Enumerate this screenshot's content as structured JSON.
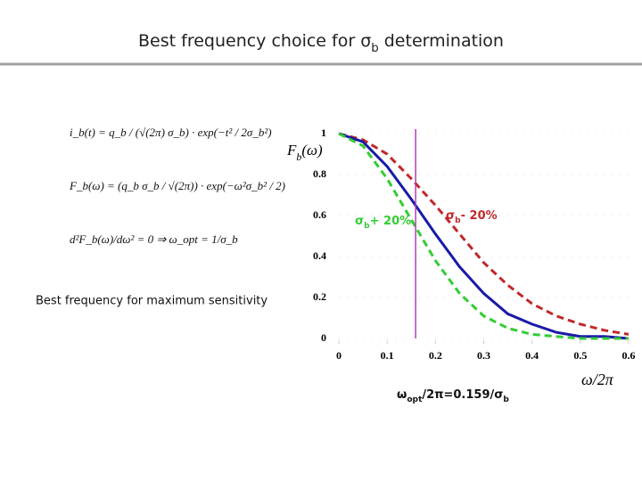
{
  "slide": {
    "title": [
      {
        "text": "Best frequency choice for σ"
      },
      {
        "text": "b",
        "sub": true
      },
      {
        "text": " determination"
      }
    ],
    "formulas": [
      "i_b(t) = q_b / (√(2π) σ_b) · exp(−t² / 2σ_b²)",
      "F_b(ω) = (q_b σ_b / √(2π)) · exp(−ω²σ_b² / 2)",
      "d²F_b(ω)/dω² = 0  ⇒  ω_opt = 1/σ_b"
    ],
    "caption": "Best frequency for maximum sensitivity"
  },
  "chart_data": {
    "type": "line",
    "x": [
      0,
      0.05,
      0.1,
      0.15,
      0.2,
      0.25,
      0.3,
      0.35,
      0.4,
      0.45,
      0.5,
      0.55,
      0.6
    ],
    "series": [
      {
        "color": "#c0282a",
        "dash": true,
        "values": [
          1,
          0.97,
          0.9,
          0.78,
          0.65,
          0.51,
          0.37,
          0.26,
          0.17,
          0.11,
          0.07,
          0.04,
          0.02
        ]
      },
      {
        "color": "#1a1aa8",
        "dash": false,
        "values": [
          1,
          0.96,
          0.84,
          0.68,
          0.51,
          0.35,
          0.22,
          0.12,
          0.07,
          0.03,
          0.01,
          0.01,
          0
        ]
      },
      {
        "color": "#33cc33",
        "dash": true,
        "values": [
          1,
          0.94,
          0.78,
          0.58,
          0.38,
          0.22,
          0.11,
          0.05,
          0.02,
          0.01,
          0,
          0,
          0
        ]
      }
    ],
    "xlim": [
      0,
      0.6
    ],
    "ylim": [
      0,
      1
    ],
    "xticks": [
      0,
      0.1,
      0.2,
      0.3,
      0.4,
      0.5,
      0.6
    ],
    "yticks": [
      0,
      0.2,
      0.4,
      0.6,
      0.8,
      1
    ],
    "vline": 0.159,
    "vline_color": "#b040b0",
    "ylabel": [
      {
        "text": "F"
      },
      {
        "text": "b",
        "sub": true
      },
      {
        "text": "(ω)"
      }
    ],
    "xlabel": [
      {
        "text": "ω/2π"
      }
    ],
    "annotations": [
      [
        {
          "text": "σ"
        },
        {
          "text": "b",
          "sub": true
        },
        {
          "text": "+ 20%"
        }
      ],
      [
        {
          "text": "σ"
        },
        {
          "text": "b",
          "sub": true
        },
        {
          "text": "- 20%"
        }
      ],
      [
        {
          "text": "ω"
        },
        {
          "text": "opt",
          "sub": true
        },
        {
          "text": "/2π=0.159/σ"
        },
        {
          "text": "b",
          "sub": true
        }
      ]
    ]
  }
}
